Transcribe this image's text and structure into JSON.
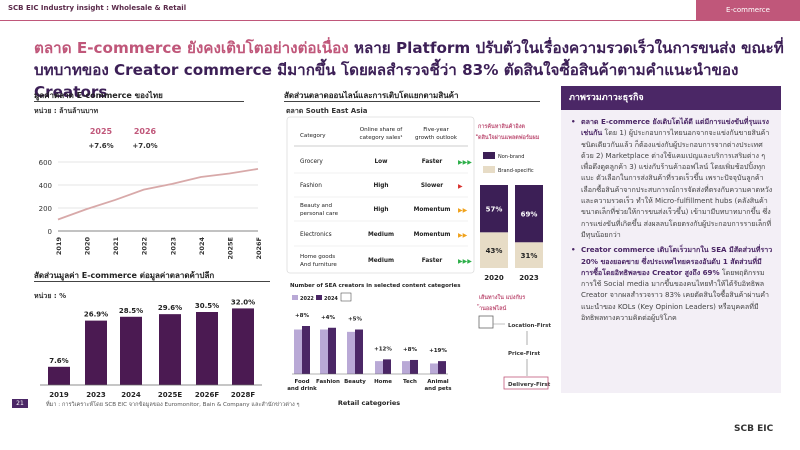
{
  "header": {
    "label": "SCB EIC Industry insight : Wholesale & Retail",
    "tag": "E-commerce"
  },
  "headline": {
    "part1": "ตลาด E-commerce ยังคงเติบโตอย่างต่อเนื่อง",
    "part2": " หลาย Platform ปรับตัวในเรื่องความรวดเร็วในการขนส่ง ขณะที่บทบาทของ Creator commerce มีมากขึ้น โดยผลสำรวจชี้ว่า 83% ตัดสินใจซื้อสินค้าตามคำแนะนำของ Creators"
  },
  "left": {
    "title1": "มูลค่าตลาด E-commerce ของไทย",
    "unit1": "หน่วย : ล้านล้านบาท",
    "title2": "สัดส่วนมูลค่า E-commerce ต่อมูลค่าตลาดค้าปลีก",
    "unit2": "หน่วย : %"
  },
  "mid": {
    "title": "สัดส่วนตลาดออนไลน์และการเติบโตแยกตามสินค้า",
    "subtitle": "ตลาด South East Asia",
    "table": {
      "headers": [
        "Category",
        "Online share of category sales¹",
        "Five-year growth outlook"
      ],
      "rows": [
        {
          "cat": "Grocery",
          "share": "Low",
          "growth": "Faster"
        },
        {
          "cat": "Fashion",
          "share": "High",
          "growth": "Slower"
        },
        {
          "cat": "Beauty and personal care",
          "share": "High",
          "growth": "Momentum"
        },
        {
          "cat": "Electronics",
          "share": "Medium",
          "growth": "Momentum"
        },
        {
          "cat": "Home goods And furniture",
          "share": "Medium",
          "growth": "Faster"
        }
      ]
    },
    "stack_title": "การค้นหาสินค้าอิงตัดสินใจผ่านแพลตฟอร์มผม",
    "path_title": "เส้นทางใน แบ่งกับร้านออฟไลน์",
    "path": [
      "Location-First",
      "Price-First",
      "Delivery-First"
    ]
  },
  "panel": {
    "title": "ภาพรวมภาวะธุรกิจ",
    "b1_bold": "ตลาด E-commerce ยังเติบโตได้ดี แต่มีการแข่งขันที่รุนแรงเช่นกัน",
    "b1_text": " โดย 1) ผู้ประกอบการไทยนอกจากจะแข่งกันขายสินค้าชนิดเดียวกันแล้ว ก็ต้องแข่งกับผู้ประกอบการจากต่างประเทศด้วย 2) Marketplace ต่างใช้แคมเปญและบริการเสริมต่าง ๆ เพื่อดึงดูดลูกค้า 3) แข่งกับร้านค้าออฟไลน์ โดยเพิ่มช้อปปิ้งทุกแบะ ตัวเลือกในการส่งสินค้าที่รวดเร็วขึ้น เพราะปัจจุบันลูกค้าเลือกซื้อสินค้าจากประสบการณ์การจัดส่งที่ตรงกับความคาดหวังและความรวดเร็ว ทำให้ Micro-fulfillment hubs (คลังสินค้าขนาดเล็กที่ช่วยให้การขนส่งเร็วขึ้น) เข้ามามีบทบาทมากขึ้น ซึ่งการแข่งขันที่เกิดขึ้น ส่งผลลบโดยตรงกับผู้ประกอบการรายเล็กที่มีทุนน้อยกว่า",
    "b2_bold": "Creator commerce เติบโตเร็วมากใน SEA มีสัดส่วนที่ราว 20% ของยอดขาย ซึ่งประเทศไทยครองอันดับ 1 สัดส่วนที่มีการซื้อโดยอิทธิพลของ Creator สูงถึง 69%",
    "b2_text": " โดยพฤติกรรมการใช้ Social media มากขึ้นของคนไทยทำให้ได้รับอิทธิพล Creator จากผลสำรวจราว 83% เคยตัดสินใจซื้อสินค้าผ่านคำแนะนำของ KOLs (Key Opinion Leaders) หรือบุคคลที่มีอิทธิพลทางความคิดต่อผู้บริโภค"
  },
  "footer": {
    "page": "21",
    "source": "ที่มา : การวิเคราะห์โดย SCB EIC จากข้อมูลของ Euromonitor, Bain & Company และสำนักข่าวต่าง ๆ",
    "logo": "SCB EIC"
  },
  "colors": {
    "purple": "#3c1f56",
    "pink": "#c0577a",
    "dark": "#4b2766",
    "bar": "#4b1a52"
  },
  "chart_data": [
    {
      "type": "line",
      "title": "มูลค่าตลาด E-commerce ของไทย",
      "x": [
        "2019",
        "2020",
        "2021",
        "2022",
        "2023",
        "2024",
        "2025E",
        "2026F"
      ],
      "values": [
        0.1,
        0.19,
        0.27,
        0.36,
        0.41,
        0.47,
        0.5,
        0.54
      ],
      "ylim": [
        0,
        600
      ],
      "yticks": [
        0,
        200,
        400,
        600
      ],
      "annotations": [
        {
          "year": "2025",
          "growth": "+7.6%"
        },
        {
          "year": "2026",
          "growth": "+7.0%"
        }
      ]
    },
    {
      "type": "bar",
      "title": "สัดส่วนมูลค่า E-commerce ต่อมูลค่าตลาดค้าปลีก",
      "categories": [
        "2019",
        "2023",
        "2024",
        "2025E",
        "2026F",
        "2028F"
      ],
      "values": [
        7.6,
        26.9,
        28.5,
        29.6,
        30.5,
        32.0
      ],
      "labels": [
        "7.6%",
        "26.9%",
        "28.5%",
        "29.6%",
        "30.5%",
        "32.0%"
      ]
    },
    {
      "type": "bar",
      "title": "Number of SEA creators in selected content categories",
      "xlabel": "Retail categories",
      "categories": [
        "Food and drink",
        "Fashion",
        "Beauty",
        "Home",
        "Tech",
        "Animal and pets"
      ],
      "series": [
        {
          "name": "2022",
          "values": [
            76,
            76,
            72,
            22,
            22,
            18
          ]
        },
        {
          "name": "2024",
          "values": [
            82,
            79,
            76,
            25,
            24,
            22
          ]
        }
      ],
      "growth": [
        "+8%",
        "+4%",
        "+5%",
        "+12%",
        "+8%",
        "+19%"
      ]
    },
    {
      "type": "bar",
      "title": "Non-brand vs Brand-specific",
      "categories": [
        "2020",
        "2023"
      ],
      "series": [
        {
          "name": "Non-brand",
          "values": [
            57,
            69
          ]
        },
        {
          "name": "Brand-specific",
          "values": [
            43,
            31
          ]
        }
      ],
      "labels": [
        [
          "57%",
          "43%"
        ],
        [
          "69%",
          "31%"
        ]
      ]
    }
  ]
}
